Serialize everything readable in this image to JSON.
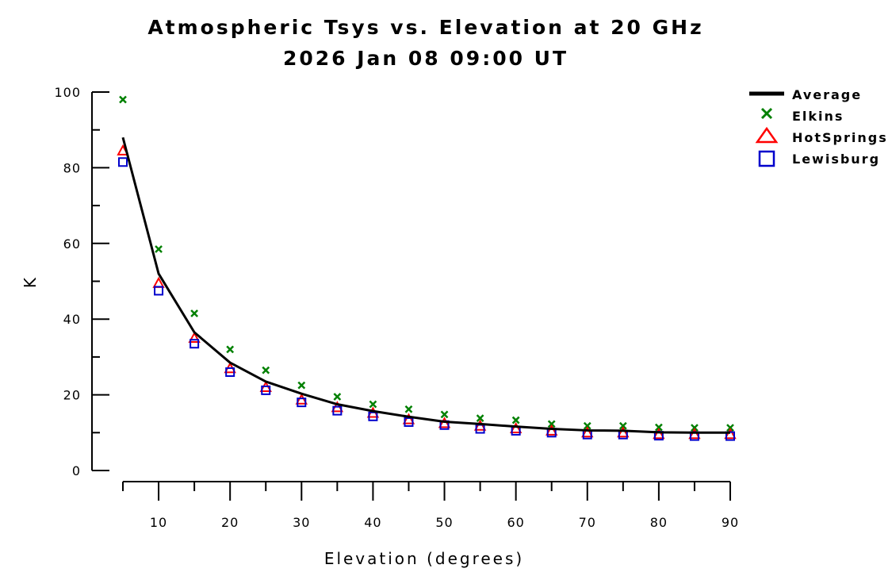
{
  "chart_data": {
    "type": "line",
    "title": "Atmospheric Tsys vs. Elevation at 20 GHz",
    "subtitle": "2026 Jan 08 09:00 UT",
    "xlabel": "Elevation (degrees)",
    "ylabel": "K",
    "xlim": [
      5,
      90
    ],
    "ylim": [
      0,
      100
    ],
    "x_ticks": [
      10,
      20,
      30,
      40,
      50,
      60,
      70,
      80,
      90
    ],
    "y_ticks": [
      0,
      20,
      40,
      60,
      80,
      100
    ],
    "grid": false,
    "legend_position": "top-right",
    "x": [
      5,
      10,
      15,
      20,
      25,
      30,
      35,
      40,
      45,
      50,
      55,
      60,
      65,
      70,
      75,
      80,
      85,
      90
    ],
    "series": [
      {
        "name": "Average",
        "marker": "line",
        "color": "#000000",
        "values": [
          88,
          52,
          36.5,
          28.5,
          23.5,
          20.3,
          17.5,
          15.7,
          14.2,
          12.9,
          12.3,
          11.6,
          11.0,
          10.6,
          10.5,
          10.1,
          10.0,
          10.0
        ]
      },
      {
        "name": "Elkins",
        "marker": "x",
        "color": "#008000",
        "values": [
          98,
          58.5,
          41.5,
          32,
          26.5,
          22.5,
          19.5,
          17.5,
          16.2,
          14.8,
          13.8,
          13.3,
          12.3,
          11.8,
          11.8,
          11.4,
          11.3,
          11.3
        ]
      },
      {
        "name": "HotSprings",
        "marker": "triangle",
        "color": "#ff0000",
        "values": [
          84.5,
          49.5,
          35,
          27,
          22,
          18.7,
          16.7,
          15.2,
          13.5,
          12.5,
          11.8,
          11.1,
          10.5,
          10.0,
          10.0,
          9.6,
          9.6,
          9.6
        ]
      },
      {
        "name": "Lewisburg",
        "marker": "square",
        "color": "#0000cc",
        "values": [
          81.5,
          47.5,
          33.5,
          26,
          21.2,
          18.0,
          15.8,
          14.3,
          12.8,
          12.0,
          11.0,
          10.5,
          10.0,
          9.5,
          9.5,
          9.2,
          9.1,
          9.1
        ]
      }
    ]
  }
}
